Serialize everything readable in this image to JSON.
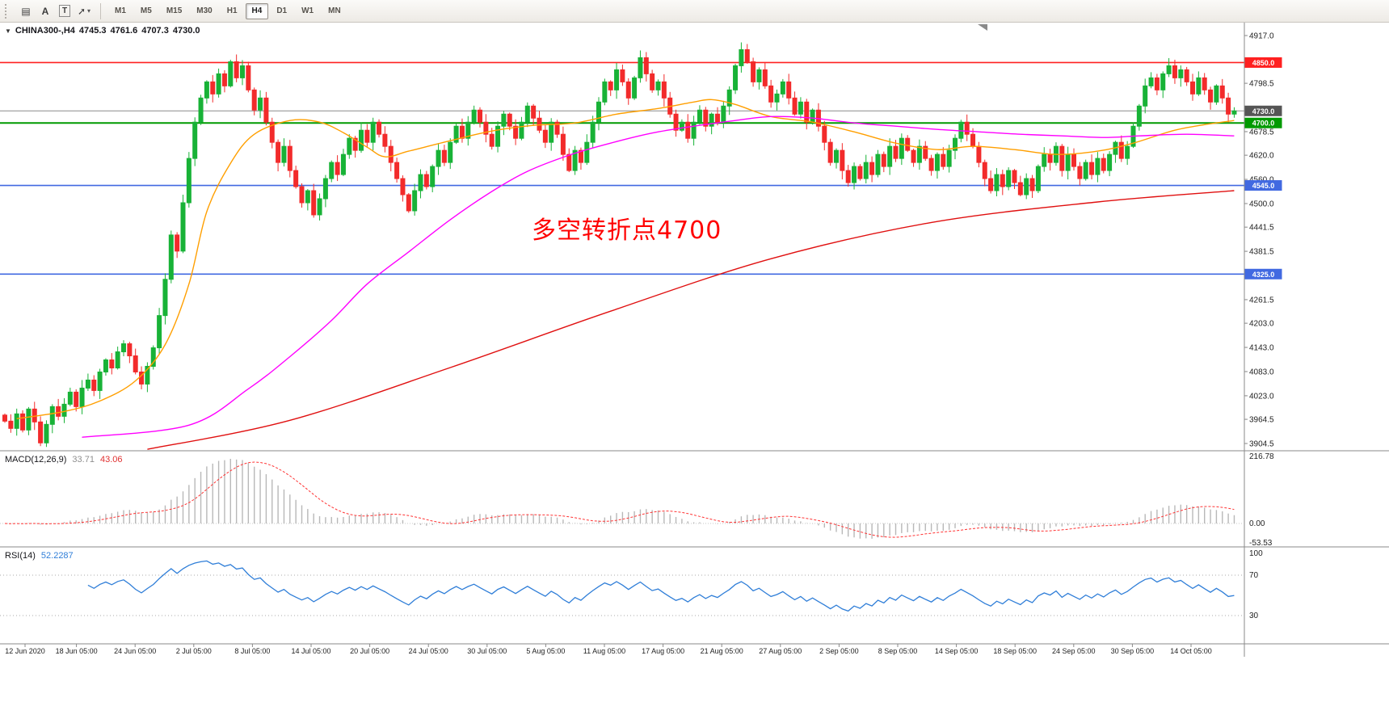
{
  "toolbar": {
    "tools": [
      {
        "name": "chart-tools",
        "glyph": "▤"
      },
      {
        "name": "label-tool",
        "glyph": "A"
      },
      {
        "name": "text-tool",
        "glyph": "T",
        "boxed": true
      },
      {
        "name": "arrow-tool",
        "glyph": "➚",
        "caret": true
      }
    ],
    "timeframes": [
      "M1",
      "M5",
      "M15",
      "M30",
      "H1",
      "H4",
      "D1",
      "W1",
      "MN"
    ],
    "active_timeframe": "H4"
  },
  "chart": {
    "title": {
      "icon": "▼",
      "symbol": "CHINA300-,H4",
      "open": "4745.3",
      "high": "4761.6",
      "low": "4707.3",
      "close": "4730.0"
    },
    "annotation": {
      "text": "多空转折点4700",
      "color": "#ff0000"
    },
    "colors": {
      "up": "#18b237",
      "down": "#f22b2b",
      "current_price_line": "#8c8c8c",
      "macd_hist": "#b8b8b8",
      "macd_signal": "#ff3333",
      "rsi": "#2f7ed8",
      "axis_text": "#222222",
      "grid_divider": "#8a8a8a"
    }
  },
  "price_axis": {
    "ticks": [
      "4917.0",
      "4798.5",
      "4678.5",
      "4620.0",
      "4560.0",
      "4500.0",
      "4441.5",
      "4381.5",
      "4261.5",
      "4203.0",
      "4143.0",
      "4083.0",
      "4023.0",
      "3964.5",
      "3904.5"
    ],
    "badges": [
      {
        "value": "4850.0",
        "color": "#ff2020"
      },
      {
        "value": "4730.0",
        "color": "#555555"
      },
      {
        "value": "4700.0",
        "color": "#009a00"
      },
      {
        "value": "4545.0",
        "color": "#4169e1"
      },
      {
        "value": "4325.0",
        "color": "#4169e1"
      }
    ]
  },
  "time_axis": {
    "labels": [
      "12 Jun 2020",
      "18 Jun 05:00",
      "24 Jun 05:00",
      "2 Jul 05:00",
      "8 Jul 05:00",
      "14 Jul 05:00",
      "20 Jul 05:00",
      "24 Jul 05:00",
      "30 Jul 05:00",
      "5 Aug 05:00",
      "11 Aug 05:00",
      "17 Aug 05:00",
      "21 Aug 05:00",
      "27 Aug 05:00",
      "2 Sep 05:00",
      "8 Sep 05:00",
      "14 Sep 05:00",
      "18 Sep 05:00",
      "24 Sep 05:00",
      "30 Sep 05:00",
      "14 Oct 05:00"
    ]
  },
  "chart_data": {
    "type": "candlestick",
    "symbol": "CHINA300-",
    "timeframe": "H4",
    "ohlc_current": {
      "open": 4745.3,
      "high": 4761.6,
      "low": 4707.3,
      "close": 4730.0
    },
    "price_axis_range": {
      "top": 4917.0,
      "bottom": 3904.5
    },
    "first_open": 3975,
    "closes": [
      3960,
      3942,
      3978,
      3938,
      3990,
      3958,
      3906,
      3952,
      3996,
      3972,
      4002,
      4032,
      3996,
      4042,
      4062,
      4036,
      4082,
      4112,
      4092,
      4132,
      4152,
      4122,
      4082,
      4052,
      4096,
      4142,
      4222,
      4312,
      4422,
      4382,
      4502,
      4612,
      4702,
      4762,
      4802,
      4772,
      4822,
      4792,
      4852,
      4812,
      4842,
      4782,
      4732,
      4762,
      4702,
      4652,
      4602,
      4642,
      4582,
      4542,
      4502,
      4532,
      4472,
      4512,
      4562,
      4602,
      4572,
      4622,
      4662,
      4632,
      4682,
      4652,
      4702,
      4672,
      4642,
      4602,
      4562,
      4522,
      4482,
      4532,
      4572,
      4542,
      4592,
      4632,
      4602,
      4652,
      4692,
      4662,
      4702,
      4732,
      4702,
      4672,
      4642,
      4692,
      4722,
      4692,
      4662,
      4702,
      4742,
      4712,
      4682,
      4652,
      4702,
      4672,
      4622,
      4582,
      4632,
      4602,
      4652,
      4702,
      4752,
      4802,
      4782,
      4832,
      4802,
      4762,
      4812,
      4862,
      4822,
      4782,
      4802,
      4762,
      4722,
      4682,
      4702,
      4662,
      4702,
      4732,
      4692,
      4722,
      4702,
      4742,
      4782,
      4842,
      4882,
      4852,
      4802,
      4832,
      4792,
      4752,
      4772,
      4802,
      4762,
      4722,
      4752,
      4702,
      4732,
      4692,
      4652,
      4602,
      4632,
      4582,
      4552,
      4592,
      4562,
      4602,
      4572,
      4622,
      4592,
      4642,
      4612,
      4662,
      4632,
      4602,
      4642,
      4612,
      4582,
      4622,
      4592,
      4632,
      4662,
      4702,
      4672,
      4642,
      4602,
      4562,
      4532,
      4572,
      4542,
      4582,
      4552,
      4522,
      4562,
      4532,
      4592,
      4622,
      4602,
      4642,
      4582,
      4622,
      4592,
      4562,
      4602,
      4572,
      4612,
      4582,
      4622,
      4652,
      4612,
      4642,
      4692,
      4742,
      4792,
      4812,
      4782,
      4822,
      4842,
      4812,
      4832,
      4802,
      4772,
      4812,
      4782,
      4752,
      4792,
      4762,
      4722,
      4730
    ],
    "horizontal_lines": [
      {
        "price": 4850.0,
        "color": "#ff2020",
        "width": 1.6
      },
      {
        "price": 4730.0,
        "color": "#8c8c8c",
        "width": 1
      },
      {
        "price": 4700.0,
        "color": "#009a00",
        "width": 2
      },
      {
        "price": 4545.0,
        "color": "#4169e1",
        "width": 1.6
      },
      {
        "price": 4325.0,
        "color": "#4169e1",
        "width": 1.6
      }
    ],
    "moving_averages": [
      {
        "name": "ma-fast",
        "color": "#ff9f00",
        "points": [
          [
            2,
            3966
          ],
          [
            10,
            3984
          ],
          [
            16,
            4010
          ],
          [
            22,
            4060
          ],
          [
            27,
            4150
          ],
          [
            31,
            4300
          ],
          [
            34,
            4480
          ],
          [
            38,
            4600
          ],
          [
            42,
            4672
          ],
          [
            48,
            4706
          ],
          [
            53,
            4702
          ],
          [
            57,
            4676
          ],
          [
            61,
            4640
          ],
          [
            64,
            4616
          ],
          [
            68,
            4630
          ],
          [
            75,
            4656
          ],
          [
            82,
            4680
          ],
          [
            89,
            4694
          ],
          [
            96,
            4700
          ],
          [
            103,
            4722
          ],
          [
            110,
            4736
          ],
          [
            116,
            4752
          ],
          [
            119,
            4758
          ],
          [
            123,
            4746
          ],
          [
            129,
            4716
          ],
          [
            136,
            4702
          ],
          [
            143,
            4678
          ],
          [
            150,
            4650
          ],
          [
            157,
            4634
          ],
          [
            163,
            4642
          ],
          [
            170,
            4634
          ],
          [
            177,
            4622
          ],
          [
            184,
            4630
          ],
          [
            190,
            4650
          ],
          [
            197,
            4682
          ],
          [
            203,
            4698
          ],
          [
            207,
            4706
          ]
        ]
      },
      {
        "name": "ma-mid",
        "color": "#ff00ff",
        "points": [
          [
            13,
            3920
          ],
          [
            31,
            3950
          ],
          [
            41,
            4040
          ],
          [
            48,
            4120
          ],
          [
            55,
            4210
          ],
          [
            61,
            4300
          ],
          [
            68,
            4380
          ],
          [
            75,
            4460
          ],
          [
            82,
            4530
          ],
          [
            88,
            4580
          ],
          [
            95,
            4620
          ],
          [
            102,
            4650
          ],
          [
            109,
            4675
          ],
          [
            116,
            4692
          ],
          [
            123,
            4706
          ],
          [
            129,
            4716
          ],
          [
            136,
            4712
          ],
          [
            143,
            4700
          ],
          [
            150,
            4692
          ],
          [
            157,
            4684
          ],
          [
            164,
            4678
          ],
          [
            171,
            4672
          ],
          [
            178,
            4668
          ],
          [
            185,
            4664
          ],
          [
            191,
            4668
          ],
          [
            199,
            4672
          ],
          [
            207,
            4668
          ]
        ]
      },
      {
        "name": "ma-slow",
        "color": "#e01010",
        "points": [
          [
            24,
            3890
          ],
          [
            48,
            3962
          ],
          [
            75,
            4093
          ],
          [
            102,
            4233
          ],
          [
            129,
            4363
          ],
          [
            156,
            4453
          ],
          [
            184,
            4504
          ],
          [
            207,
            4532
          ]
        ]
      }
    ],
    "macd": {
      "label": "MACD(12,26,9)",
      "params": [
        12,
        26,
        9
      ],
      "main": 33.71,
      "signal": 43.06,
      "main_display": "33.71",
      "signal_display": "43.06",
      "axis_labels": [
        "216.78",
        "0.00",
        "-53.53"
      ]
    },
    "rsi": {
      "label": "RSI(14)",
      "period": 14,
      "value": 52.2287,
      "value_display": "52.2287",
      "axis_labels": [
        "100",
        "70",
        "30"
      ],
      "levels": [
        70,
        30
      ]
    }
  }
}
